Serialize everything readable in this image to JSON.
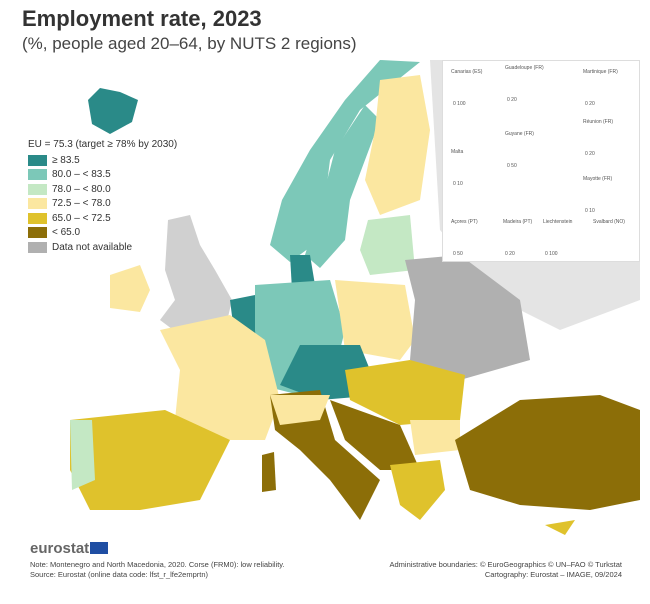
{
  "title": "Employment rate, 2023",
  "subtitle": "(%, people aged 20–64, by NUTS 2 regions)",
  "legend": {
    "header": "EU = 75.3 (target ≥ 78% by 2030)",
    "items": [
      {
        "label": "≥ 83.5",
        "color": "#2a8a88"
      },
      {
        "label": "80.0 – < 83.5",
        "color": "#7cc8b8"
      },
      {
        "label": "78.0 – < 80.0",
        "color": "#c4e8c4"
      },
      {
        "label": "72.5 – < 78.0",
        "color": "#fbe7a0"
      },
      {
        "label": "65.0 – < 72.5",
        "color": "#dfc22c"
      },
      {
        "label": "< 65.0",
        "color": "#8c6e08"
      },
      {
        "label": "Data not available",
        "color": "#b0b0b0"
      }
    ]
  },
  "insets": {
    "labels": [
      "Canarias (ES)",
      "Guadeloupe (FR)",
      "Martinique (FR)",
      "Réunion (FR)",
      "Guyane (FR)",
      "Malta",
      "Mayotte (FR)",
      "Açores (PT)",
      "Madeira (PT)",
      "Liechtenstein",
      "Svalbard (NO)"
    ],
    "scales": [
      "0  100",
      "0  20",
      "0  20",
      "0  20",
      "0 50",
      "0  10",
      "0  10",
      "0  50",
      "0  20",
      "0 100"
    ]
  },
  "logo": "eurostat",
  "note": "Note: Montenegro and North Macedonia, 2020. Corse (FRM0): low reliability.",
  "source": "Source: Eurostat (online data code: lfst_r_lfe2emprtn)",
  "boundaries": "Administrative boundaries: © EuroGeographics © UN–FAO © Turkstat",
  "cartography": "Cartography: Eurostat – IMAGE, 09/2024"
}
